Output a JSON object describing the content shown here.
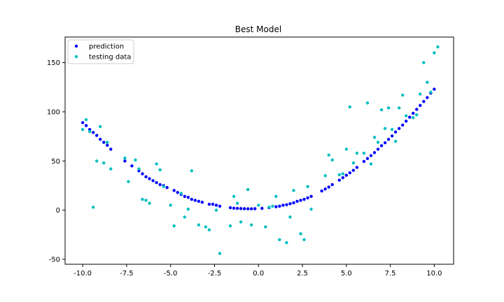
{
  "chart_data": {
    "type": "scatter",
    "title": "Best Model",
    "xlabel": "",
    "ylabel": "",
    "xlim": [
      -11.0,
      11.1
    ],
    "ylim": [
      -55,
      176
    ],
    "xticks": [
      -10.0,
      -7.5,
      -5.0,
      -2.5,
      0.0,
      2.5,
      5.0,
      7.5,
      10.0
    ],
    "xtick_labels": [
      "-10.0",
      "-7.5",
      "-5.0",
      "-2.5",
      "0.0",
      "2.5",
      "5.0",
      "7.5",
      "10.0"
    ],
    "yticks": [
      -50,
      0,
      50,
      100,
      150
    ],
    "ytick_labels": [
      "-50",
      "0",
      "50",
      "100",
      "150"
    ],
    "grid": false,
    "legend_position": "top-left",
    "series": [
      {
        "name": "prediction",
        "color": "#0000ff",
        "points": [
          [
            -10.0,
            89
          ],
          [
            -9.8,
            86
          ],
          [
            -9.6,
            82
          ],
          [
            -9.4,
            79
          ],
          [
            -9.2,
            76
          ],
          [
            -9.0,
            72
          ],
          [
            -8.8,
            69
          ],
          [
            -8.6,
            66
          ],
          [
            -8.4,
            62
          ],
          [
            -7.6,
            50
          ],
          [
            -7.2,
            45
          ],
          [
            -6.8,
            40
          ],
          [
            -6.6,
            37
          ],
          [
            -6.4,
            34
          ],
          [
            -6.2,
            32
          ],
          [
            -6.0,
            30
          ],
          [
            -5.8,
            28
          ],
          [
            -5.6,
            26
          ],
          [
            -5.4,
            25
          ],
          [
            -5.2,
            23
          ],
          [
            -4.8,
            20
          ],
          [
            -4.6,
            18
          ],
          [
            -4.4,
            16
          ],
          [
            -4.2,
            14
          ],
          [
            -4.0,
            13
          ],
          [
            -3.8,
            11
          ],
          [
            -3.6,
            10
          ],
          [
            -3.4,
            9
          ],
          [
            -3.2,
            8
          ],
          [
            -2.8,
            6
          ],
          [
            -2.6,
            6
          ],
          [
            -2.4,
            5
          ],
          [
            -2.2,
            4
          ],
          [
            -1.6,
            2.5
          ],
          [
            -1.4,
            2
          ],
          [
            -1.2,
            1.8
          ],
          [
            -1.0,
            1.6
          ],
          [
            -0.8,
            1.5
          ],
          [
            -0.6,
            1.4
          ],
          [
            -0.4,
            1.4
          ],
          [
            -0.2,
            1.5
          ],
          [
            0.2,
            1.8
          ],
          [
            0.6,
            2.5
          ],
          [
            1.0,
            3.5
          ],
          [
            1.2,
            4
          ],
          [
            1.4,
            5
          ],
          [
            1.6,
            5.5
          ],
          [
            1.8,
            6.5
          ],
          [
            2.0,
            7.5
          ],
          [
            2.2,
            9
          ],
          [
            2.4,
            10
          ],
          [
            2.6,
            11
          ],
          [
            2.8,
            12.5
          ],
          [
            3.0,
            14
          ],
          [
            3.6,
            19.5
          ],
          [
            3.8,
            21.5
          ],
          [
            4.0,
            23.5
          ],
          [
            4.2,
            26
          ],
          [
            4.6,
            30.5
          ],
          [
            4.8,
            33
          ],
          [
            5.0,
            35.5
          ],
          [
            5.2,
            38
          ],
          [
            5.4,
            40.5
          ],
          [
            5.6,
            43.5
          ],
          [
            6.0,
            49.5
          ],
          [
            6.2,
            52.5
          ],
          [
            6.4,
            55.5
          ],
          [
            6.6,
            58.5
          ],
          [
            6.8,
            62
          ],
          [
            7.0,
            65.5
          ],
          [
            7.2,
            68.5
          ],
          [
            7.4,
            72
          ],
          [
            7.6,
            75.5
          ],
          [
            7.8,
            79.5
          ],
          [
            8.0,
            83
          ],
          [
            8.2,
            86.5
          ],
          [
            8.4,
            90.5
          ],
          [
            8.6,
            94.5
          ],
          [
            8.8,
            98.5
          ],
          [
            9.0,
            102.5
          ],
          [
            9.2,
            106.5
          ],
          [
            9.4,
            110.5
          ],
          [
            9.6,
            114.5
          ],
          [
            9.8,
            119
          ],
          [
            10.0,
            123
          ]
        ]
      },
      {
        "name": "testing data",
        "color": "#00bfbf",
        "points": [
          [
            -10.0,
            82
          ],
          [
            -9.8,
            92
          ],
          [
            -9.6,
            80
          ],
          [
            -9.4,
            3
          ],
          [
            -9.2,
            50
          ],
          [
            -9.0,
            85
          ],
          [
            -8.8,
            48
          ],
          [
            -8.6,
            69
          ],
          [
            -8.4,
            42
          ],
          [
            -7.6,
            53
          ],
          [
            -7.4,
            29
          ],
          [
            -7.0,
            51
          ],
          [
            -6.8,
            42
          ],
          [
            -6.6,
            11
          ],
          [
            -6.4,
            10
          ],
          [
            -6.2,
            7
          ],
          [
            -5.8,
            47
          ],
          [
            -5.6,
            41
          ],
          [
            -5.4,
            24
          ],
          [
            -5.0,
            5
          ],
          [
            -4.8,
            -16
          ],
          [
            -4.4,
            17
          ],
          [
            -4.2,
            -7
          ],
          [
            -4.0,
            1
          ],
          [
            -3.8,
            40
          ],
          [
            -3.4,
            -15
          ],
          [
            -3.0,
            -17
          ],
          [
            -2.8,
            -20
          ],
          [
            -2.4,
            0
          ],
          [
            -2.2,
            -44
          ],
          [
            -1.6,
            -16
          ],
          [
            -1.4,
            14
          ],
          [
            -1.2,
            7
          ],
          [
            -1.0,
            -12
          ],
          [
            -0.6,
            21
          ],
          [
            -0.4,
            -15
          ],
          [
            0.0,
            5
          ],
          [
            0.4,
            -17
          ],
          [
            0.6,
            3
          ],
          [
            0.8,
            4
          ],
          [
            1.0,
            14
          ],
          [
            1.2,
            -30
          ],
          [
            1.6,
            -33
          ],
          [
            1.8,
            -7
          ],
          [
            2.0,
            20
          ],
          [
            2.4,
            -24
          ],
          [
            2.6,
            -30
          ],
          [
            2.8,
            24
          ],
          [
            3.0,
            1
          ],
          [
            3.8,
            35
          ],
          [
            4.0,
            56
          ],
          [
            4.2,
            51
          ],
          [
            4.6,
            36
          ],
          [
            4.8,
            37
          ],
          [
            5.0,
            62
          ],
          [
            5.2,
            105
          ],
          [
            5.4,
            48
          ],
          [
            5.6,
            58
          ],
          [
            6.0,
            58
          ],
          [
            6.2,
            109
          ],
          [
            6.4,
            47
          ],
          [
            6.6,
            74
          ],
          [
            6.8,
            69
          ],
          [
            7.0,
            102
          ],
          [
            7.2,
            83
          ],
          [
            7.4,
            104
          ],
          [
            7.6,
            82
          ],
          [
            7.8,
            70
          ],
          [
            8.0,
            104
          ],
          [
            8.2,
            117
          ],
          [
            8.4,
            96
          ],
          [
            8.8,
            94
          ],
          [
            9.0,
            97
          ],
          [
            9.2,
            118
          ],
          [
            9.4,
            150
          ],
          [
            9.6,
            130
          ],
          [
            9.8,
            120
          ],
          [
            10.0,
            160
          ],
          [
            10.2,
            166
          ]
        ]
      }
    ]
  }
}
